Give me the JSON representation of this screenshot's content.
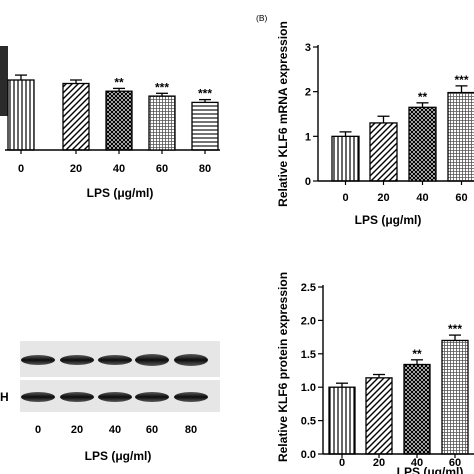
{
  "panel_b_label": "(B)",
  "blot_row_label_partial": "H",
  "blot_categories": [
    "0",
    "20",
    "40",
    "60",
    "80"
  ],
  "blot_xlabel": "LPS (μg/ml)",
  "chart_data": [
    {
      "id": "panel-a",
      "type": "bar",
      "categories": [
        "0",
        "20",
        "40",
        "60",
        "80"
      ],
      "values": [
        1.0,
        0.95,
        0.84,
        0.77,
        0.68
      ],
      "errors": [
        0.07,
        0.05,
        0.04,
        0.04,
        0.04
      ],
      "significance": [
        "",
        "",
        "**",
        "***",
        "***"
      ],
      "patterns": [
        "vlines",
        "diag",
        "cross",
        "grid",
        "hlines"
      ],
      "xlabel": "LPS (μg/ml)",
      "ylabel": "",
      "ylim": [
        0,
        1.5
      ]
    },
    {
      "id": "panel-b",
      "type": "bar",
      "categories": [
        "0",
        "20",
        "40",
        "60"
      ],
      "values": [
        1.0,
        1.3,
        1.65,
        1.98
      ],
      "errors": [
        0.1,
        0.15,
        0.1,
        0.15
      ],
      "significance": [
        "",
        "",
        "**",
        "***"
      ],
      "patterns": [
        "vlines",
        "diag",
        "cross",
        "grid"
      ],
      "xlabel": "LPS (μg/ml)",
      "ylabel": "Relative KLF6 mRNA expression",
      "ylim": [
        0,
        3
      ],
      "yticks": [
        "0",
        "1",
        "2",
        "3"
      ]
    },
    {
      "id": "panel-d",
      "type": "bar",
      "categories": [
        "0",
        "20",
        "40",
        "60"
      ],
      "values": [
        1.0,
        1.14,
        1.34,
        1.7
      ],
      "errors": [
        0.06,
        0.05,
        0.07,
        0.08
      ],
      "significance": [
        "",
        "",
        "**",
        "***"
      ],
      "patterns": [
        "vlines",
        "diag",
        "cross",
        "grid"
      ],
      "xlabel": "LPS (μg/ml)",
      "ylabel": "Relative KLF6 protein expression",
      "ylim": [
        0,
        2.5
      ],
      "yticks": [
        "0.0",
        "0.5",
        "1.0",
        "1.5",
        "2.0",
        "2.5"
      ]
    }
  ]
}
